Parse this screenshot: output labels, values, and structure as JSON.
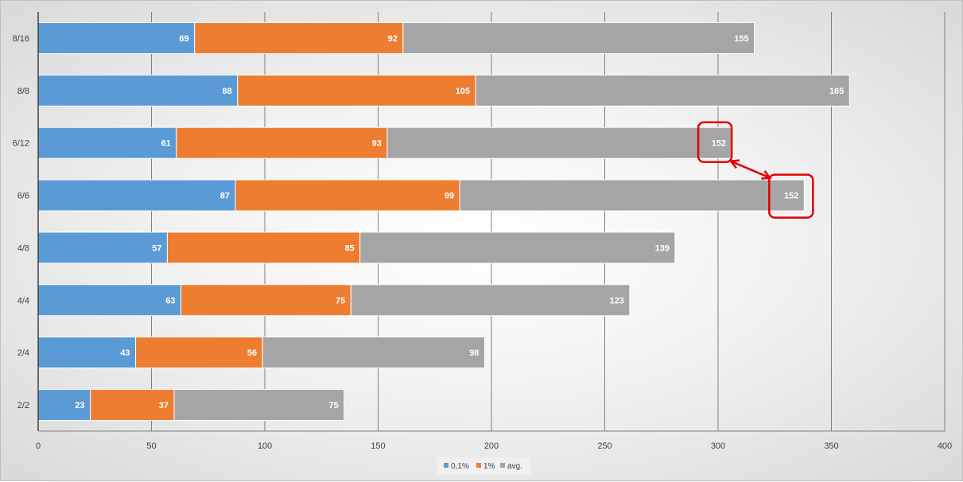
{
  "chart_data": {
    "type": "bar",
    "orientation": "horizontal",
    "stacked": true,
    "categories": [
      "8/16",
      "8/8",
      "6/12",
      "6/6",
      "4/8",
      "4/4",
      "2/4",
      "2/2"
    ],
    "series": [
      {
        "name": "0,1%",
        "color": "#5b9bd5",
        "values": [
          69,
          88,
          61,
          87,
          57,
          63,
          43,
          23
        ]
      },
      {
        "name": "1%",
        "color": "#ed7d31",
        "values": [
          92,
          105,
          93,
          99,
          85,
          75,
          56,
          37
        ]
      },
      {
        "name": "avg.",
        "color": "#a5a5a5",
        "values": [
          155,
          165,
          152,
          152,
          139,
          123,
          98,
          75
        ]
      }
    ],
    "xlim": [
      0,
      400
    ],
    "xticks": [
      0,
      50,
      100,
      150,
      200,
      250,
      300,
      350,
      400
    ],
    "grid": "vertical",
    "legend_position": "bottom",
    "annotations": {
      "highlighted": [
        {
          "category": "6/12",
          "series": "avg."
        },
        {
          "category": "6/6",
          "series": "avg."
        }
      ],
      "arrow": "double-headed, red, between highlighted labels",
      "color": "#e00000"
    }
  }
}
